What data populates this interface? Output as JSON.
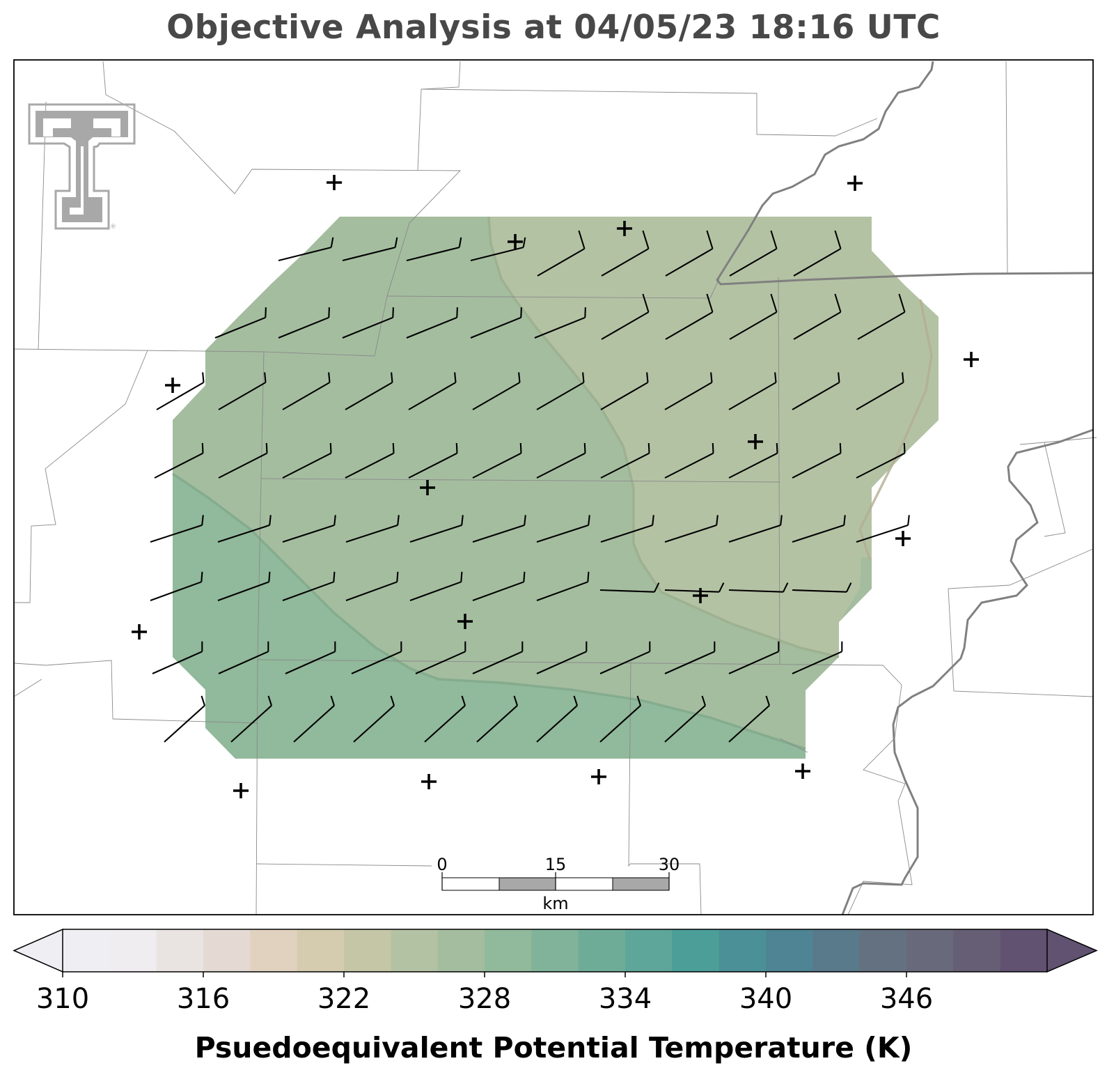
{
  "title": "Objective Analysis at 04/05/23 18:16 UTC",
  "colorbar": {
    "label": "Psuedoequivalent Potential Temperature (K)",
    "ticks": [
      "310",
      "316",
      "322",
      "328",
      "334",
      "340",
      "346"
    ],
    "min": 310,
    "max": 352,
    "step": 2,
    "colors": [
      "#efeef3",
      "#efedf0",
      "#e9e4e2",
      "#e4dad3",
      "#e1d2bf",
      "#d5ccaf",
      "#c5c6a6",
      "#b4c2a4",
      "#a4bd9f",
      "#91b99b",
      "#80b39a",
      "#6eac98",
      "#5ea69a",
      "#4c9e99",
      "#4a9096",
      "#4e8493",
      "#587a8a",
      "#637180",
      "#686a7b",
      "#665e74",
      "#605270"
    ]
  },
  "scale_bar": {
    "labels": [
      "0",
      "15",
      "30"
    ],
    "unit": "km"
  },
  "analysis": {
    "levels_k": [
      322,
      324,
      326,
      328
    ],
    "colors": {
      "level_322": "#b4c2a4",
      "level_324": "#a4bd9f",
      "level_326": "#91b99b"
    }
  },
  "logo": {
    "name": "Texas Tech double-T",
    "color": "#a8a8a8"
  },
  "stations_marker": "+",
  "wind_barbs": "full and half barbs, gridded"
}
